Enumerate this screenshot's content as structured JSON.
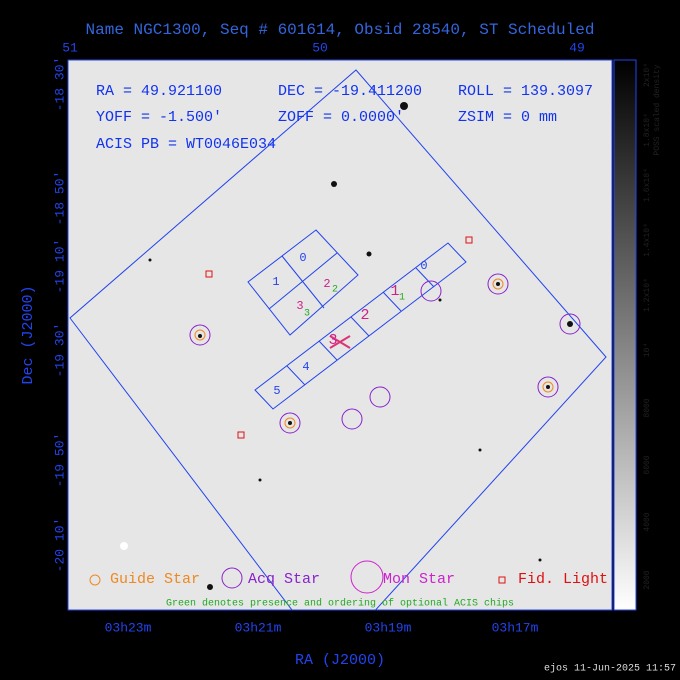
{
  "title": "Name NGC1300, Seq # 601614, Obsid 28540, ST Scheduled",
  "top_axis": [
    "51",
    "50",
    "49"
  ],
  "left_axis": [
    "-18 30'",
    "-18 50'",
    "-19 10'",
    "-19 30'",
    "-19 50'",
    "-20 10'"
  ],
  "bottom_axis": [
    "03h23m",
    "03h21m",
    "03h19m",
    "03h17m"
  ],
  "x_label": "RA (J2000)",
  "y_label": "Dec (J2000)",
  "info": [
    "RA = 49.921100",
    "DEC = -19.411200",
    "ROLL = 139.3097",
    "YOFF =  -1.500'",
    "ZOFF =  0.0000'",
    "ZSIM = 0 mm",
    "ACIS PB = WT0046E034"
  ],
  "i_chips": [
    "0",
    "1",
    "2",
    "3"
  ],
  "s_chips": [
    "0",
    "1",
    "2",
    "3",
    "4",
    "5"
  ],
  "optional_chips": [
    "2",
    "3",
    "1"
  ],
  "legend": [
    "Guide Star",
    "Acq Star",
    "Mon Star",
    "Fid. Light"
  ],
  "note": "Green denotes presence and ordering of optional ACIS chips",
  "colorbar": {
    "label": "POSS scaled density",
    "ticks": [
      "2000",
      "4000",
      "6000",
      "8000",
      "10⁴",
      "1.2x10⁴",
      "1.4x10⁴",
      "1.6x10⁴",
      "1.8x10⁴",
      "2x10⁴"
    ]
  },
  "footer": "ejos 11-Jun-2025 11:57"
}
